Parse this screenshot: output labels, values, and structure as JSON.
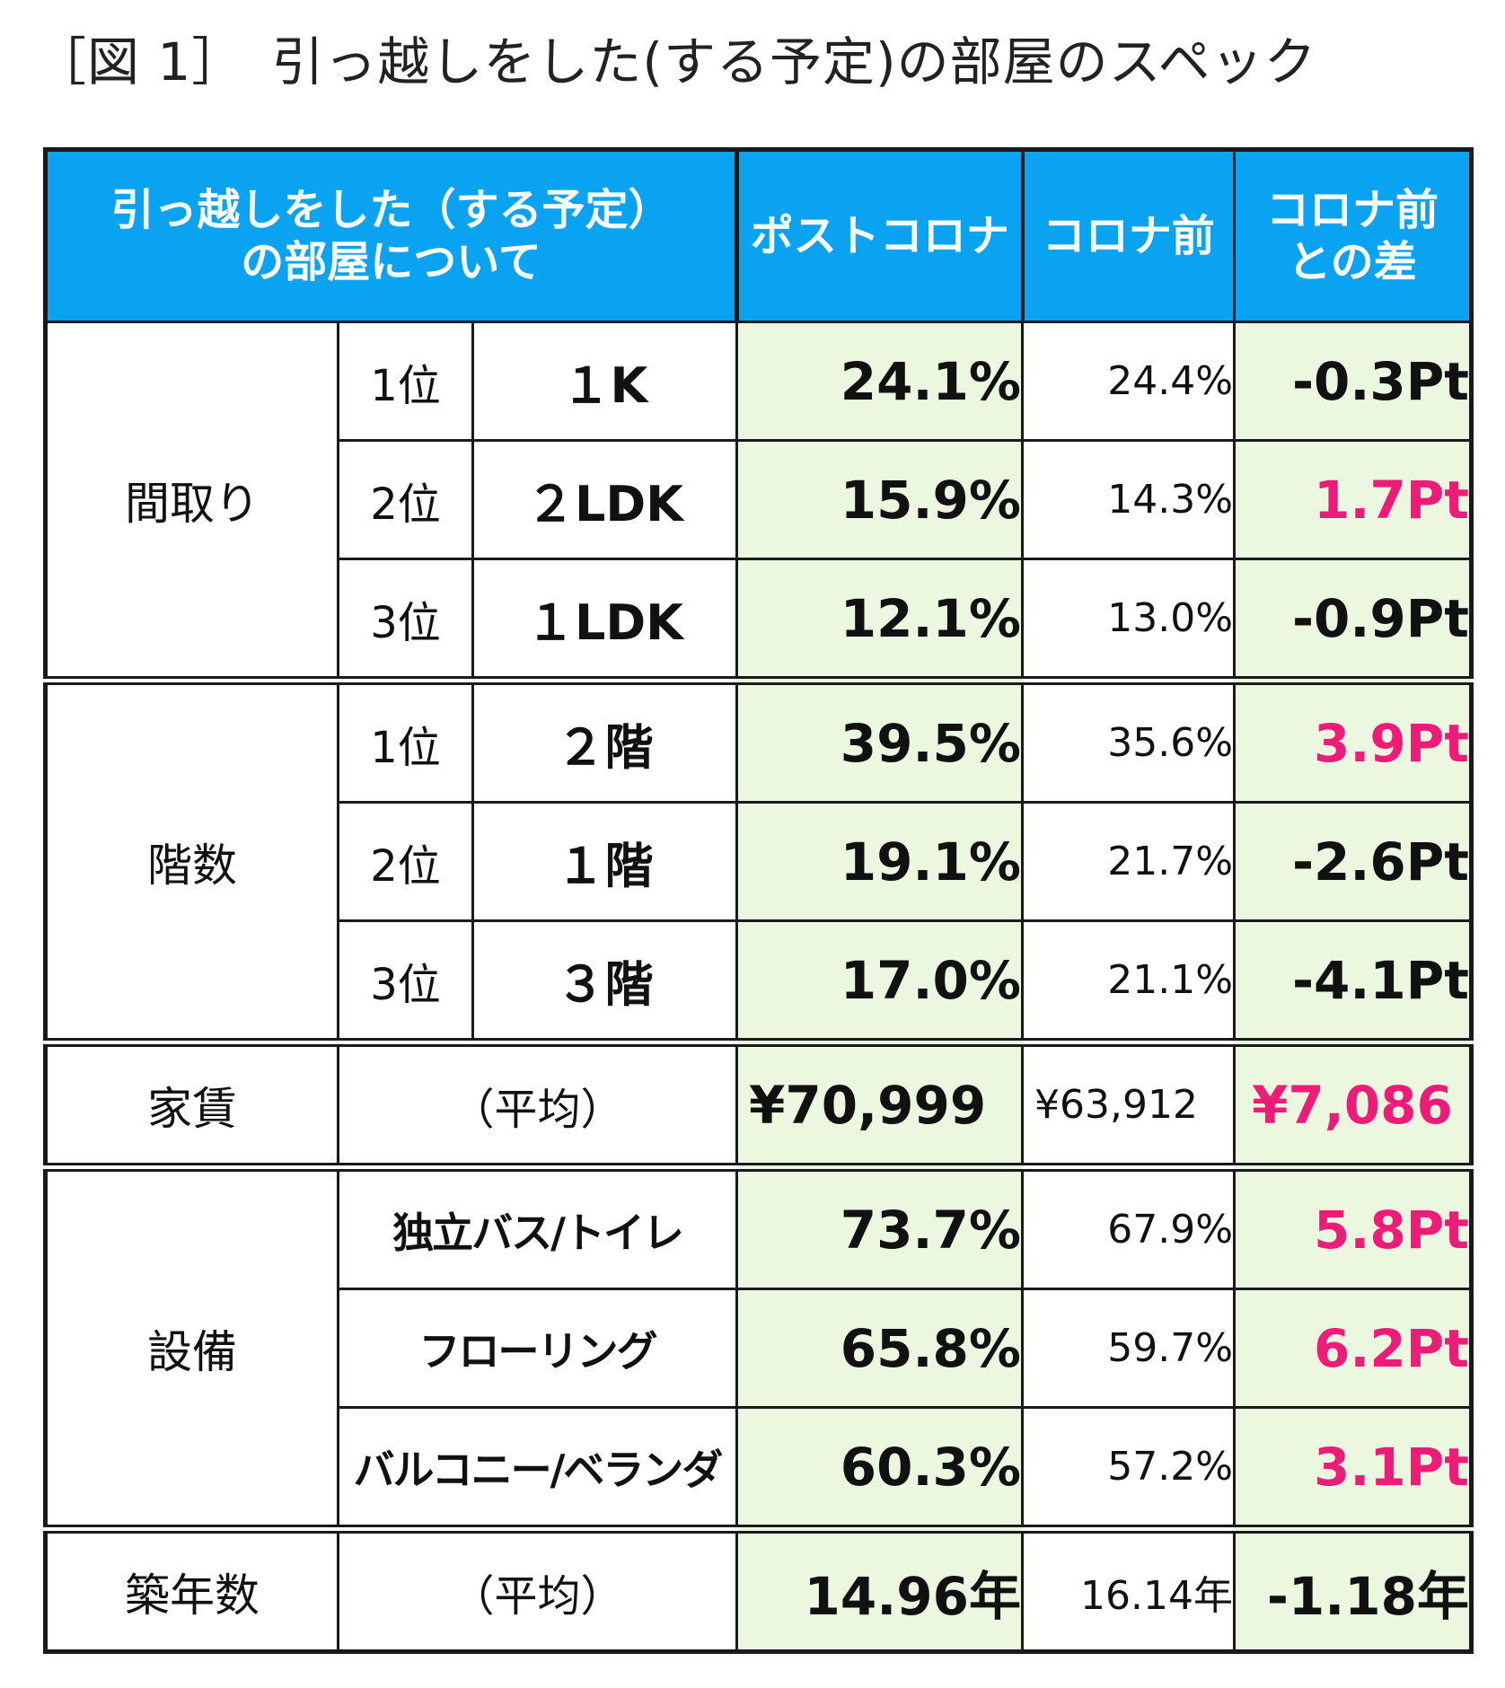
{
  "figure_title": "［図 1］　引っ越しをした(する予定)の部屋のスペック",
  "header": {
    "subject_line1": "引っ越しをした（する予定）",
    "subject_line2": "の部屋について",
    "post_corona": "ポストコロナ",
    "pre_corona": "コロナ前",
    "diff_line1": "コロナ前",
    "diff_line2": "との差"
  },
  "layout": {
    "category": "間取り",
    "rows": [
      {
        "rank": "1位",
        "item": "１K",
        "post": "24.1%",
        "pre": "24.4%",
        "diff": "-0.3Pt",
        "sign": "neg"
      },
      {
        "rank": "2位",
        "item": "２LDK",
        "post": "15.9%",
        "pre": "14.3%",
        "diff": "1.7Pt",
        "sign": "pos"
      },
      {
        "rank": "3位",
        "item": "１LDK",
        "post": "12.1%",
        "pre": "13.0%",
        "diff": "-0.9Pt",
        "sign": "neg"
      }
    ]
  },
  "floors": {
    "category": "階数",
    "rows": [
      {
        "rank": "1位",
        "item": "２階",
        "post": "39.5%",
        "pre": "35.6%",
        "diff": "3.9Pt",
        "sign": "pos"
      },
      {
        "rank": "2位",
        "item": "１階",
        "post": "19.1%",
        "pre": "21.7%",
        "diff": "-2.6Pt",
        "sign": "neg"
      },
      {
        "rank": "3位",
        "item": "３階",
        "post": "17.0%",
        "pre": "21.1%",
        "diff": "-4.1Pt",
        "sign": "neg"
      }
    ]
  },
  "rent": {
    "category": "家賃",
    "avg_label": "（平均）",
    "post": "¥70,999",
    "pre": "¥63,912",
    "diff": "¥7,086",
    "sign": "pos"
  },
  "equipment": {
    "category": "設備",
    "rows": [
      {
        "item": "独立バス/トイレ",
        "post": "73.7%",
        "pre": "67.9%",
        "diff": "5.8Pt",
        "sign": "pos"
      },
      {
        "item": "フローリング",
        "post": "65.8%",
        "pre": "59.7%",
        "diff": "6.2Pt",
        "sign": "pos"
      },
      {
        "item": "バルコニー/ベランダ",
        "post": "60.3%",
        "pre": "57.2%",
        "diff": "3.1Pt",
        "sign": "pos"
      }
    ]
  },
  "age": {
    "category": "築年数",
    "avg_label": "（平均）",
    "post": "14.96年",
    "pre": "16.14年",
    "diff": "-1.18年",
    "sign": "neg"
  },
  "colors": {
    "header_bg": "#0aa3f2",
    "highlight_bg": "#ebf8df",
    "positive": "#ef1b78",
    "negative": "#111111"
  }
}
